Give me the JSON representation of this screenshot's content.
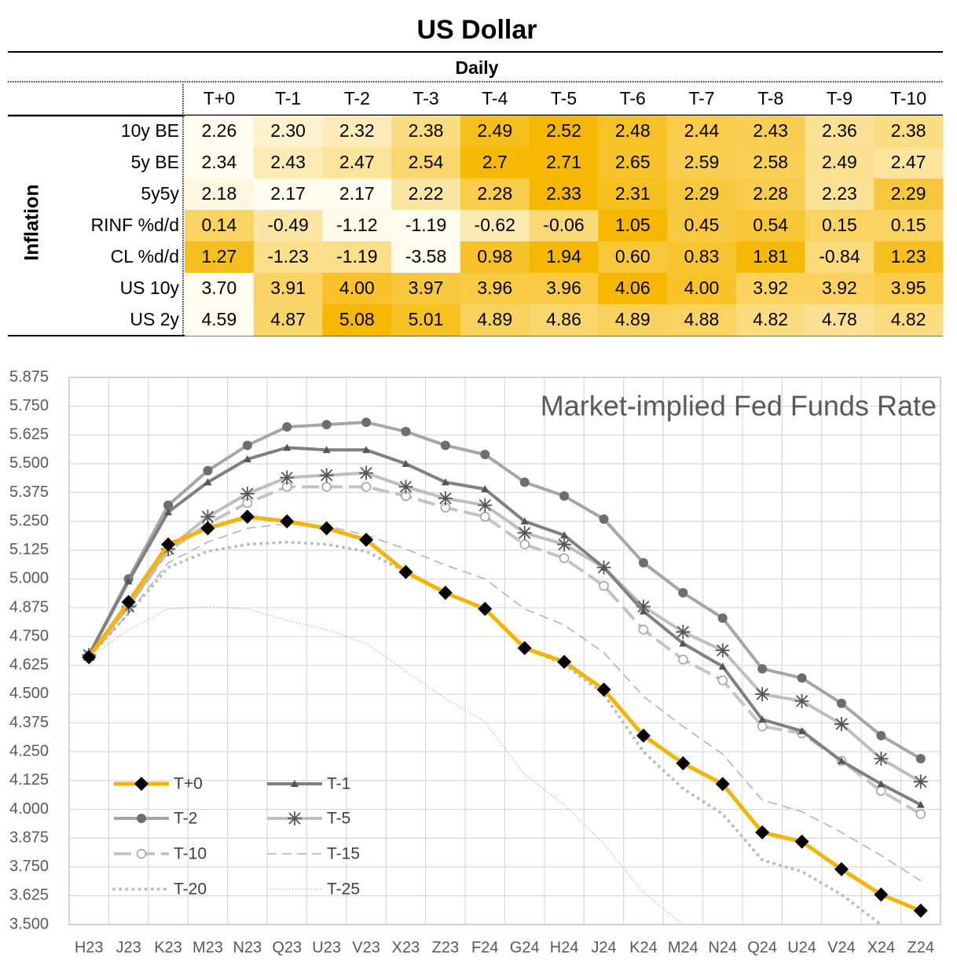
{
  "table": {
    "title": "US Dollar",
    "subtitle": "Daily",
    "group": "Inflation",
    "columns": [
      "T+0",
      "T-1",
      "T-2",
      "T-3",
      "T-4",
      "T-5",
      "T-6",
      "T-7",
      "T-8",
      "T-9",
      "T-10"
    ],
    "rows": [
      {
        "label": "10y BE",
        "values": [
          "2.26",
          "2.30",
          "2.32",
          "2.38",
          "2.49",
          "2.52",
          "2.48",
          "2.44",
          "2.43",
          "2.36",
          "2.38"
        ]
      },
      {
        "label": "5y BE",
        "values": [
          "2.34",
          "2.43",
          "2.47",
          "2.54",
          "2.7",
          "2.71",
          "2.65",
          "2.59",
          "2.58",
          "2.49",
          "2.47"
        ]
      },
      {
        "label": "5y5y",
        "values": [
          "2.18",
          "2.17",
          "2.17",
          "2.22",
          "2.28",
          "2.33",
          "2.31",
          "2.29",
          "2.28",
          "2.23",
          "2.29"
        ]
      },
      {
        "label": "RINF %d/d",
        "values": [
          "0.14",
          "-0.49",
          "-1.12",
          "-1.19",
          "-0.62",
          "-0.06",
          "1.05",
          "0.45",
          "0.54",
          "0.15",
          "0.15"
        ]
      },
      {
        "label": "CL %d/d",
        "values": [
          "1.27",
          "-1.23",
          "-1.19",
          "-3.58",
          "0.98",
          "1.94",
          "0.60",
          "0.83",
          "1.81",
          "-0.84",
          "1.23"
        ]
      },
      {
        "label": "US 10y",
        "values": [
          "3.70",
          "3.91",
          "4.00",
          "3.97",
          "3.96",
          "3.96",
          "4.06",
          "4.00",
          "3.92",
          "3.92",
          "3.95"
        ]
      },
      {
        "label": "US 2y",
        "values": [
          "4.59",
          "4.87",
          "5.08",
          "5.01",
          "4.89",
          "4.86",
          "4.89",
          "4.88",
          "4.82",
          "4.78",
          "4.82"
        ]
      }
    ]
  },
  "chart_data": {
    "type": "line",
    "title": "Market-implied Fed Funds Rate",
    "categories": [
      "H23",
      "J23",
      "K23",
      "M23",
      "N23",
      "Q23",
      "U23",
      "V23",
      "X23",
      "Z23",
      "F24",
      "G24",
      "H24",
      "J24",
      "K24",
      "M24",
      "N24",
      "Q24",
      "U24",
      "V24",
      "X24",
      "Z24"
    ],
    "ylim": [
      3.5,
      5.875
    ],
    "yticks": [
      {
        "value": 3.5,
        "label": "3.500"
      },
      {
        "value": 3.625,
        "label": "3.625"
      },
      {
        "value": 3.75,
        "label": "3.750"
      },
      {
        "value": 3.875,
        "label": "3.875"
      },
      {
        "value": 4.0,
        "label": "4.000"
      },
      {
        "value": 4.125,
        "label": "4.125"
      },
      {
        "value": 4.25,
        "label": "4.250"
      },
      {
        "value": 4.375,
        "label": "4.375"
      },
      {
        "value": 4.5,
        "label": "4.500"
      },
      {
        "value": 4.625,
        "label": "4.625"
      },
      {
        "value": 4.75,
        "label": "4.750"
      },
      {
        "value": 4.875,
        "label": "4.875"
      },
      {
        "value": 5.0,
        "label": "5.000"
      },
      {
        "value": 5.125,
        "label": "5.125"
      },
      {
        "value": 5.25,
        "label": "5.250"
      },
      {
        "value": 5.375,
        "label": "5.375"
      },
      {
        "value": 5.5,
        "label": "5.500"
      },
      {
        "value": 5.625,
        "label": "5.625"
      },
      {
        "value": 5.75,
        "label": "5.750"
      },
      {
        "value": 5.875,
        "label": "5.875"
      }
    ],
    "grid": true,
    "legend": "lower left",
    "series": [
      {
        "name": "T+0",
        "color": "#f5b400",
        "width": 5,
        "dash": "solid",
        "marker": "diamond",
        "values": [
          4.66,
          4.9,
          5.15,
          5.22,
          5.27,
          5.25,
          5.22,
          5.17,
          5.03,
          4.94,
          4.87,
          4.7,
          4.64,
          4.52,
          4.32,
          4.2,
          4.11,
          3.9,
          3.86,
          3.74,
          3.63,
          3.56
        ]
      },
      {
        "name": "T-1",
        "color": "#808080",
        "width": 4,
        "dash": "solid",
        "marker": "triangle",
        "values": [
          4.67,
          4.99,
          5.29,
          5.42,
          5.52,
          5.57,
          5.56,
          5.56,
          5.5,
          5.42,
          5.39,
          5.25,
          5.19,
          5.05,
          4.86,
          4.72,
          4.62,
          4.39,
          4.34,
          4.21,
          4.11,
          4.02
        ]
      },
      {
        "name": "T-2",
        "color": "#a6a6a6",
        "width": 4,
        "dash": "solid",
        "marker": "circle",
        "values": [
          4.67,
          5.0,
          5.32,
          5.47,
          5.58,
          5.66,
          5.67,
          5.68,
          5.64,
          5.58,
          5.54,
          5.42,
          5.36,
          5.26,
          5.07,
          4.94,
          4.83,
          4.61,
          4.57,
          4.46,
          4.32,
          4.22
        ]
      },
      {
        "name": "T-5",
        "color": "#bfbfbf",
        "width": 4,
        "dash": "solid",
        "marker": "asterisk",
        "values": [
          4.67,
          4.88,
          5.13,
          5.27,
          5.37,
          5.44,
          5.45,
          5.46,
          5.4,
          5.35,
          5.32,
          5.2,
          5.15,
          5.05,
          4.88,
          4.77,
          4.69,
          4.5,
          4.47,
          4.37,
          4.22,
          4.12
        ]
      },
      {
        "name": "T-10",
        "color": "#c4c4c4",
        "width": 4,
        "dash": "long-dash",
        "marker": "open-circle",
        "values": [
          4.66,
          4.88,
          5.12,
          5.24,
          5.33,
          5.4,
          5.4,
          5.4,
          5.36,
          5.31,
          5.27,
          5.15,
          5.09,
          4.97,
          4.78,
          4.65,
          4.56,
          4.36,
          4.33,
          4.21,
          4.08,
          3.98
        ]
      },
      {
        "name": "T-15",
        "color": "#b0b0b0",
        "width": 1.5,
        "dash": "dash",
        "marker": "none",
        "values": [
          4.66,
          4.85,
          5.07,
          5.16,
          5.22,
          5.24,
          5.23,
          5.19,
          5.13,
          5.06,
          5.0,
          4.87,
          4.8,
          4.68,
          4.49,
          4.36,
          4.24,
          4.04,
          3.99,
          3.9,
          3.8,
          3.69
        ]
      },
      {
        "name": "T-20",
        "color": "#bdbdbd",
        "width": 4,
        "dash": "dot",
        "marker": "none",
        "values": [
          4.66,
          4.85,
          5.05,
          5.12,
          5.15,
          5.16,
          5.15,
          5.12,
          5.03,
          4.94,
          4.87,
          4.7,
          4.63,
          4.5,
          4.25,
          4.09,
          3.98,
          3.78,
          3.73,
          3.63,
          3.5,
          null
        ]
      },
      {
        "name": "T-25",
        "color": "#a0a0a0",
        "width": 1.3,
        "dash": "fine-dot",
        "marker": "none",
        "values": [
          4.66,
          4.78,
          4.87,
          4.88,
          4.87,
          4.82,
          4.78,
          4.72,
          4.6,
          4.48,
          4.38,
          4.15,
          4.02,
          3.85,
          3.64,
          3.5,
          null,
          null,
          null,
          null,
          null,
          null
        ]
      }
    ]
  }
}
